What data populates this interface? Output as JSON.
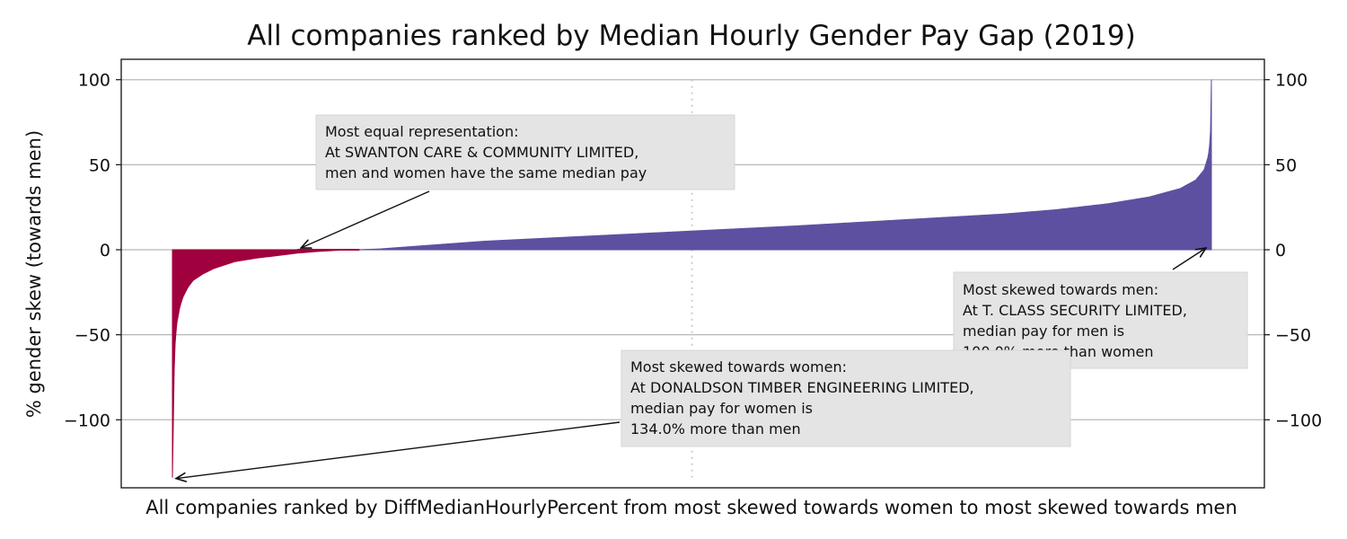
{
  "chart_data": {
    "type": "area",
    "title": "All companies ranked by Median Hourly Gender Pay Gap (2019)",
    "xlabel": "All companies ranked by DiffMedianHourlyPercent from most skewed towards women to most skewed towards men",
    "ylabel": "% gender skew (towards men)",
    "ylim": [
      -140,
      112
    ],
    "yticks": [
      100,
      50,
      0,
      -50,
      -100
    ],
    "ytick_labels": [
      "100",
      "50",
      "0",
      "−50",
      "−100"
    ],
    "grid": "horizontal",
    "ranked_profile": {
      "rank_fraction": [
        0,
        0.002,
        0.004,
        0.007,
        0.01,
        0.015,
        0.02,
        0.03,
        0.04,
        0.05,
        0.06,
        0.08,
        0.1,
        0.12,
        0.14,
        0.16,
        0.18,
        0.2,
        0.3,
        0.4,
        0.5,
        0.6,
        0.7,
        0.8,
        0.85,
        0.9,
        0.94,
        0.97,
        0.985,
        0.993,
        0.997,
        0.999,
        1.0
      ],
      "value": [
        -134,
        -60,
        -44,
        -34,
        -28,
        -22,
        -18,
        -14,
        -11,
        -9,
        -7,
        -5,
        -3.5,
        -2,
        -1,
        -0.3,
        0,
        0.5,
        5,
        8,
        11,
        14,
        17.5,
        21,
        23.5,
        27,
        31,
        36,
        41,
        47,
        55,
        65,
        100
      ]
    },
    "series": [
      {
        "name": "",
        "color": "#a0003e"
      },
      {
        "name": "",
        "color": "#5e50a0"
      }
    ],
    "median_marker_color": "#cccccc",
    "annotations": [
      {
        "lines": [
          "Most equal representation:",
          " At SWANTON CARE & COMMUNITY LIMITED,",
          " men and women have the same median pay"
        ],
        "target_rank_fraction": 0.122,
        "target_value": 0
      },
      {
        "lines": [
          "Most skewed towards men:",
          " At T. CLASS SECURITY LIMITED,",
          " median pay for men is",
          " 100.0% more than women"
        ],
        "target_rank_fraction": 1.0,
        "target_value": 0
      },
      {
        "lines": [
          "Most skewed towards women:",
          " At DONALDSON TIMBER ENGINEERING LIMITED,",
          " median pay for women is",
          " 134.0% more than men"
        ],
        "target_rank_fraction": 0.0,
        "target_value": -134
      }
    ]
  }
}
